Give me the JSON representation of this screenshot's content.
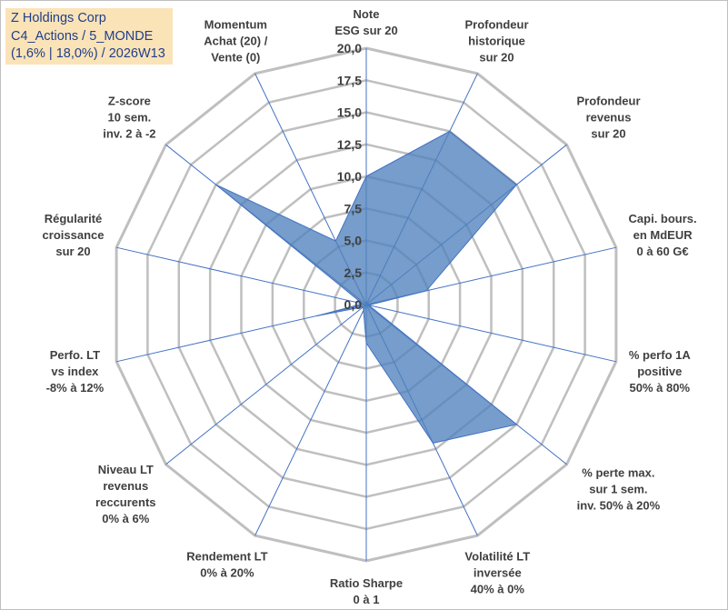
{
  "title_box": {
    "line1": "Z Holdings Corp",
    "line2": "C4_Actions / 5_MONDE",
    "line3": "(1,6% | 18,0%) / 2026W13"
  },
  "colors": {
    "fill": "#4f81bd",
    "spoke": "#4472c4",
    "grid": "#bfbfbf",
    "title_bg": "#fbe3b8",
    "title_text": "#1f3f8a",
    "label_text": "#404040"
  },
  "chart_data": {
    "type": "radar",
    "title": "",
    "rlim": [
      0,
      20
    ],
    "grid": true,
    "tick_labels": [
      "0,0",
      "2,5",
      "5,0",
      "7,5",
      "10,0",
      "12,5",
      "15,0",
      "17,5",
      "20,0"
    ],
    "categories": [
      [
        "Note",
        "ESG sur 20"
      ],
      [
        "Profondeur",
        "historique",
        "sur 20"
      ],
      [
        "Profondeur",
        "revenus",
        "sur 20"
      ],
      [
        "Capi. bours.",
        "en MdEUR",
        "0 à 60 G€"
      ],
      [
        "% perfo 1A",
        "positive",
        "50% à 80%"
      ],
      [
        "% perte max.",
        "sur 1 sem.",
        "inv. 50% à 20%"
      ],
      [
        "Volatilité LT",
        "inversée",
        "40% à 0%"
      ],
      [
        "Ratio Sharpe",
        "0 à 1"
      ],
      [
        "Rendement LT",
        "0% à 20%"
      ],
      [
        "Niveau LT",
        "revenus",
        "reccurents",
        "0% à 6%"
      ],
      [
        "Perfo. LT",
        "vs index",
        "-8% à 12%"
      ],
      [
        "Régularité",
        "croissance",
        "sur 20"
      ],
      [
        "Z-score",
        "10 sem.",
        "inv. 2 à -2"
      ],
      [
        "Momentum",
        "Achat (20) /",
        "Vente (0)"
      ]
    ],
    "series": [
      {
        "values": [
          10.0,
          15.0,
          15.0,
          4.8,
          0.2,
          15.0,
          12.0,
          3.0,
          0.5,
          0.3,
          4.0,
          0.3,
          15.0,
          5.5
        ]
      }
    ]
  }
}
